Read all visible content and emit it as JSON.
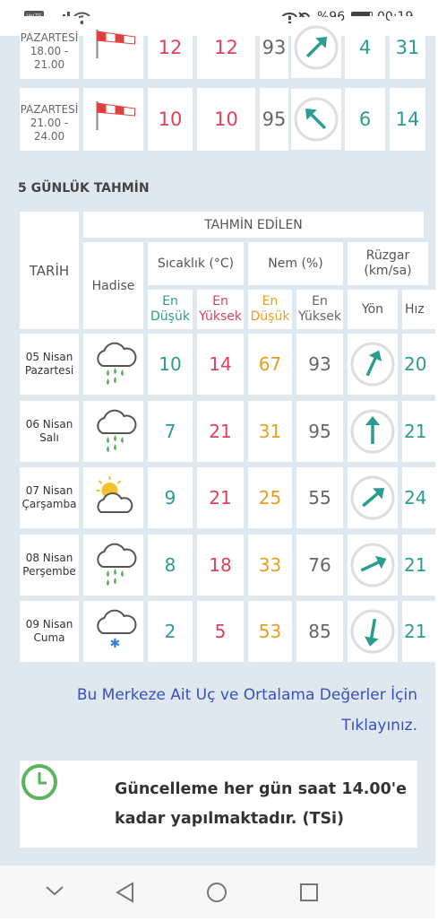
{
  "status": {
    "network": "VoLTE",
    "battery": "%96",
    "time": "00:19"
  },
  "hourly": [
    {
      "day": "PAZARTESİ",
      "time": "18.00 - 21.00",
      "min": 12,
      "max": 12,
      "humidity": 93,
      "speed": 4,
      "extra": 31
    },
    {
      "day": "PAZARTESİ",
      "time": "21.00 - 24.00",
      "min": 10,
      "max": 10,
      "humidity": 95,
      "speed": 6,
      "extra": 14
    }
  ],
  "forecast": {
    "title": "5 GÜNLÜK TAHMİN",
    "headers": {
      "date": "TARİH",
      "predicted": "TAHMİN EDİLEN",
      "event": "Hadise",
      "temperature": "Sıcaklık (°C)",
      "humidity": "Nem (%)",
      "wind": "Rüzgar (km/sa)",
      "temp_min": "En Düşük",
      "temp_max": "En Yüksek",
      "hum_min": "En Düşük",
      "hum_max": "En Yüksek",
      "direction": "Yön",
      "speed": "Hız"
    },
    "rows": [
      {
        "date": "05 Nisan",
        "day": "Pazartesi",
        "tmin": 10,
        "tmax": 14,
        "hmin": 67,
        "hmax": 93,
        "speed": 20
      },
      {
        "date": "06 Nisan",
        "day": "Salı",
        "tmin": 7,
        "tmax": 21,
        "hmin": 31,
        "hmax": 95,
        "speed": 21
      },
      {
        "date": "07 Nisan",
        "day": "Çarşamba",
        "tmin": 9,
        "tmax": 21,
        "hmin": 25,
        "hmax": 55,
        "speed": 24
      },
      {
        "date": "08 Nisan",
        "day": "Perşembe",
        "tmin": 8,
        "tmax": 18,
        "hmin": 33,
        "hmax": 76,
        "speed": 21
      },
      {
        "date": "09 Nisan",
        "day": "Cuma",
        "tmin": 2,
        "tmax": 5,
        "hmin": 53,
        "hmax": 85,
        "speed": 21
      }
    ]
  },
  "link": "Bu Merkeze Ait Uç ve Ortalama Değerler İçin Tıklayınız.",
  "note": "Güncelleme her gün saat 14.00'e kadar yapılmaktadır. (TSi)"
}
